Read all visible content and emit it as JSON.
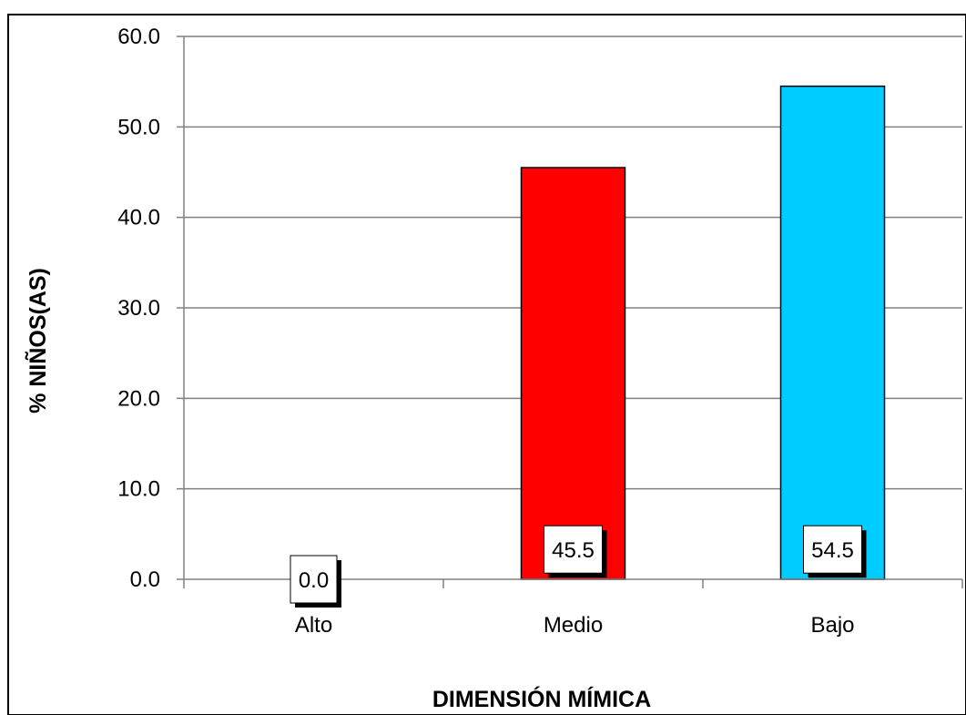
{
  "chart_data": {
    "type": "bar",
    "categories": [
      "Alto",
      "Medio",
      "Bajo"
    ],
    "values": [
      0.0,
      45.5,
      54.5
    ],
    "data_labels": [
      "0.0",
      "45.5",
      "54.5"
    ],
    "bar_colors": [
      "#ff0000",
      "#ff0000",
      "#00ccff"
    ],
    "title": "",
    "xlabel": "DIMENSIÓN MÍMICA",
    "ylabel": "% NIÑOS(AS)",
    "ylim": [
      0,
      60
    ],
    "yticks": [
      0,
      10,
      20,
      30,
      40,
      50,
      60
    ],
    "ytick_labels": [
      "0.0",
      "10.0",
      "20.0",
      "30.0",
      "40.0",
      "50.0",
      "60.0"
    ],
    "grid": true,
    "legend": "none"
  }
}
